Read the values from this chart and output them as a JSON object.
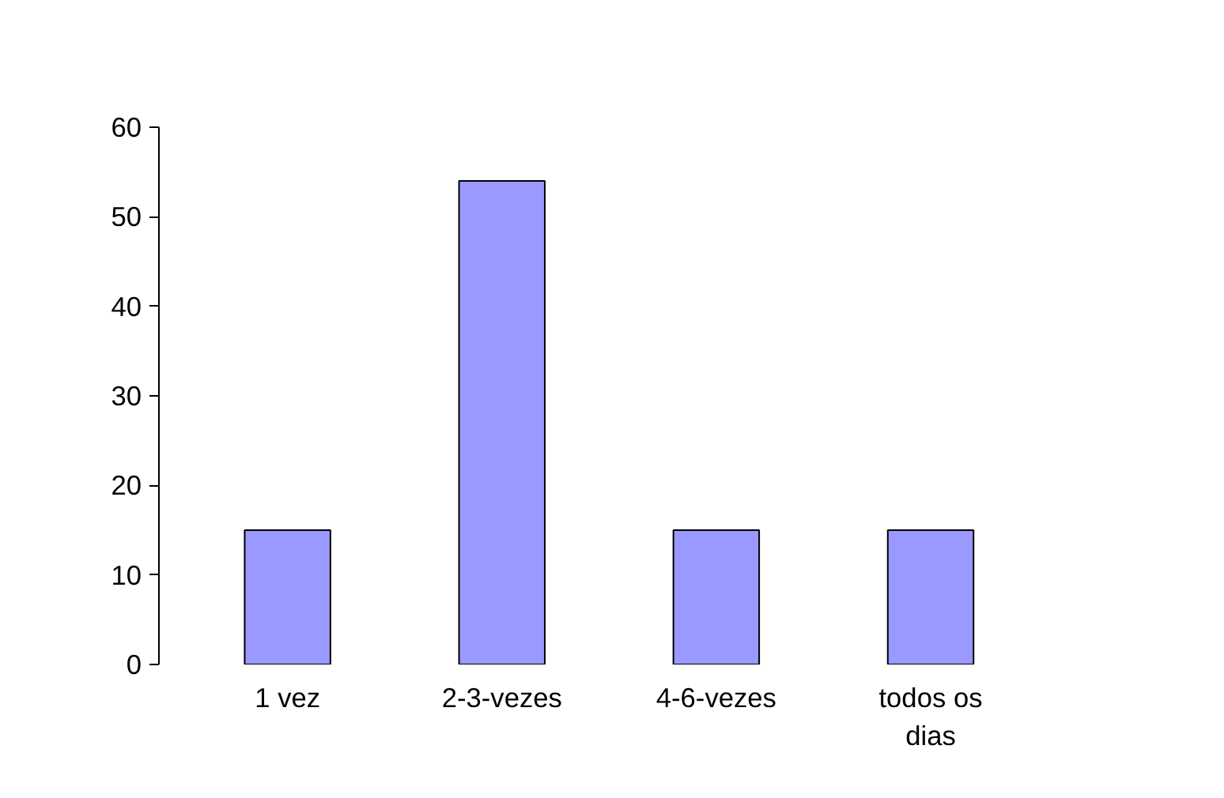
{
  "chart_data": {
    "type": "bar",
    "categories": [
      "1 vez",
      "2-3-vezes",
      "4-6-vezes",
      "todos os dias"
    ],
    "values": [
      15,
      54,
      15,
      15
    ],
    "color": "#9999ff",
    "ylim": [
      0,
      60
    ],
    "yticks": [
      0,
      10,
      20,
      30,
      40,
      50,
      60
    ],
    "grid": false
  }
}
